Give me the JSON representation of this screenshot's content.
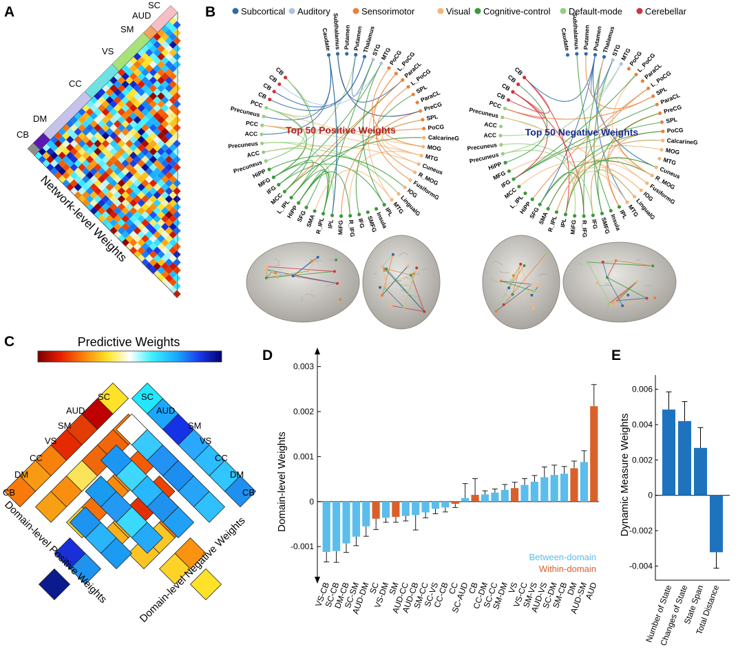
{
  "panels": {
    "a": "A",
    "b": "B",
    "c": "C",
    "d": "D",
    "e": "E"
  },
  "colors": {
    "subcortical": "#2e6aa8",
    "auditory": "#a9c3e6",
    "sensorimotor": "#e9823a",
    "visual": "#f3b57a",
    "cognitive": "#3b9a3b",
    "default": "#93cf7e",
    "cerebellar": "#d0343b",
    "between": "#5bbdeb",
    "within": "#d9602a",
    "dynamic": "#1e73be"
  },
  "legend": [
    {
      "key": "subcortical",
      "label": "Subcortical"
    },
    {
      "key": "auditory",
      "label": "Auditory"
    },
    {
      "key": "sensorimotor",
      "label": "Sensorimotor"
    },
    {
      "key": "visual",
      "label": "Visual"
    },
    {
      "key": "cognitive",
      "label": "Cognitive-control"
    },
    {
      "key": "default",
      "label": "Default-mode"
    },
    {
      "key": "cerebellar",
      "label": "Cerebellar"
    }
  ],
  "panel_a": {
    "networks": [
      "CB",
      "DM",
      "CC",
      "VS",
      "SM",
      "AUD",
      "SC"
    ],
    "caption": "Network-level Weights"
  },
  "panel_b": {
    "positive_title": "Top 50 Positive Weights",
    "negative_title": "Top 50 Negative Weights",
    "positive_nodes": [
      {
        "label": "Caudate",
        "net": "subcortical"
      },
      {
        "label": "Subthalamus",
        "net": "subcortical"
      },
      {
        "label": "Putamen",
        "net": "subcortical"
      },
      {
        "label": "Putamen",
        "net": "subcortical"
      },
      {
        "label": "Thalamus",
        "net": "subcortical"
      },
      {
        "label": "STG",
        "net": "auditory"
      },
      {
        "label": "MTG",
        "net": "auditory"
      },
      {
        "label": "PoCG",
        "net": "sensorimotor"
      },
      {
        "label": "L_PoCG",
        "net": "sensorimotor"
      },
      {
        "label": "ParaCL",
        "net": "sensorimotor"
      },
      {
        "label": "L_PoCG",
        "net": "sensorimotor"
      },
      {
        "label": "SPL",
        "net": "sensorimotor"
      },
      {
        "label": "ParaCL",
        "net": "sensorimotor"
      },
      {
        "label": "PreCG",
        "net": "sensorimotor"
      },
      {
        "label": "SPL",
        "net": "sensorimotor"
      },
      {
        "label": "PoCG",
        "net": "sensorimotor"
      },
      {
        "label": "CalcarineG",
        "net": "visual"
      },
      {
        "label": "MOG",
        "net": "visual"
      },
      {
        "label": "MTG",
        "net": "visual"
      },
      {
        "label": "Cuneus",
        "net": "visual"
      },
      {
        "label": "R_MOG",
        "net": "visual"
      },
      {
        "label": "FusiformG",
        "net": "visual"
      },
      {
        "label": "IOG",
        "net": "visual"
      },
      {
        "label": "LingualG",
        "net": "visual"
      },
      {
        "label": "MTG",
        "net": "visual"
      },
      {
        "label": "IPL",
        "net": "cognitive"
      },
      {
        "label": "Insula",
        "net": "cognitive"
      },
      {
        "label": "SMFG",
        "net": "cognitive"
      },
      {
        "label": "IFG",
        "net": "cognitive"
      },
      {
        "label": "R_IFG",
        "net": "cognitive"
      },
      {
        "label": "MiFG",
        "net": "cognitive"
      },
      {
        "label": "IPL",
        "net": "cognitive"
      },
      {
        "label": "R_IPL",
        "net": "cognitive"
      },
      {
        "label": "SMA",
        "net": "cognitive"
      },
      {
        "label": "SFG",
        "net": "cognitive"
      },
      {
        "label": "HiPP",
        "net": "cognitive"
      },
      {
        "label": "L_IPL",
        "net": "cognitive"
      },
      {
        "label": "MCC",
        "net": "cognitive"
      },
      {
        "label": "IFG",
        "net": "cognitive"
      },
      {
        "label": "MFG",
        "net": "cognitive"
      },
      {
        "label": "HiPP",
        "net": "cognitive"
      },
      {
        "label": "Precuneus",
        "net": "default"
      },
      {
        "label": "ACC",
        "net": "default"
      },
      {
        "label": "Precuneus",
        "net": "default"
      },
      {
        "label": "ACC",
        "net": "default"
      },
      {
        "label": "PCC",
        "net": "default"
      },
      {
        "label": "Precuneus",
        "net": "default"
      },
      {
        "label": "PCC",
        "net": "default"
      },
      {
        "label": "CB",
        "net": "cerebellar"
      },
      {
        "label": "CB",
        "net": "cerebellar"
      },
      {
        "label": "CB",
        "net": "cerebellar"
      },
      {
        "label": "CB",
        "net": "cerebellar"
      }
    ],
    "negative_nodes": [
      {
        "label": "Caudate",
        "net": "subcortical"
      },
      {
        "label": "Subthalamus",
        "net": "subcortical"
      },
      {
        "label": "Putamen",
        "net": "subcortical"
      },
      {
        "label": "Putamen",
        "net": "subcortical"
      },
      {
        "label": "Thalamus",
        "net": "subcortical"
      },
      {
        "label": "STG",
        "net": "auditory"
      },
      {
        "label": "MTG",
        "net": "auditory"
      },
      {
        "label": "PoCG",
        "net": "sensorimotor"
      },
      {
        "label": "L_PoCG",
        "net": "sensorimotor"
      },
      {
        "label": "ParaCL",
        "net": "sensorimotor"
      },
      {
        "label": "L_PoCG",
        "net": "sensorimotor"
      },
      {
        "label": "SPL",
        "net": "sensorimotor"
      },
      {
        "label": "ParaCL",
        "net": "sensorimotor"
      },
      {
        "label": "PreCG",
        "net": "sensorimotor"
      },
      {
        "label": "SPL",
        "net": "sensorimotor"
      },
      {
        "label": "PoCG",
        "net": "sensorimotor"
      },
      {
        "label": "CalcarineG",
        "net": "visual"
      },
      {
        "label": "MOG",
        "net": "visual"
      },
      {
        "label": "MTG",
        "net": "visual"
      },
      {
        "label": "Cuneus",
        "net": "visual"
      },
      {
        "label": "R_MOG",
        "net": "visual"
      },
      {
        "label": "FusiformG",
        "net": "visual"
      },
      {
        "label": "IOG",
        "net": "visual"
      },
      {
        "label": "LingualG",
        "net": "visual"
      },
      {
        "label": "MTG",
        "net": "visual"
      },
      {
        "label": "IPL",
        "net": "cognitive"
      },
      {
        "label": "Insula",
        "net": "cognitive"
      },
      {
        "label": "SMFG",
        "net": "cognitive"
      },
      {
        "label": "IFG",
        "net": "cognitive"
      },
      {
        "label": "R_IFG",
        "net": "cognitive"
      },
      {
        "label": "MiFG",
        "net": "cognitive"
      },
      {
        "label": "IPL",
        "net": "cognitive"
      },
      {
        "label": "R_IPL",
        "net": "cognitive"
      },
      {
        "label": "SMA",
        "net": "cognitive"
      },
      {
        "label": "SFG",
        "net": "cognitive"
      },
      {
        "label": "HiPP",
        "net": "cognitive"
      },
      {
        "label": "L_IPL",
        "net": "cognitive"
      },
      {
        "label": "MCC",
        "net": "cognitive"
      },
      {
        "label": "IFG",
        "net": "cognitive"
      },
      {
        "label": "MFG",
        "net": "cognitive"
      },
      {
        "label": "HiPP",
        "net": "cognitive"
      },
      {
        "label": "Precuneus",
        "net": "default"
      },
      {
        "label": "Precuneus",
        "net": "default"
      },
      {
        "label": "ACC",
        "net": "default"
      },
      {
        "label": "ACC",
        "net": "default"
      },
      {
        "label": "Precuneus",
        "net": "default"
      },
      {
        "label": "PCC",
        "net": "default"
      },
      {
        "label": "CB",
        "net": "cerebellar"
      },
      {
        "label": "CB",
        "net": "cerebellar"
      },
      {
        "label": "CB",
        "net": "cerebellar"
      },
      {
        "label": "CB",
        "net": "cerebellar"
      }
    ]
  },
  "panel_c": {
    "colorbar_title": "Predictive Weights",
    "networks": [
      "SC",
      "AUD",
      "SM",
      "VS",
      "CC",
      "DM",
      "CB"
    ],
    "positive_caption": "Domain-level Positive Weights",
    "negative_caption": "Domain-level Negative Weights"
  },
  "chart_data": [
    {
      "type": "bar",
      "title": "",
      "ylabel": "Domain-level Weights",
      "xlabel": "",
      "ylim": [
        -0.0017,
        0.0033
      ],
      "yticks": [
        -0.001,
        0,
        0.001,
        0.002,
        0.003
      ],
      "ytick_labels": [
        "-0.001",
        "0",
        "0.001",
        "0.002",
        "0.003"
      ],
      "legend": [
        {
          "key": "between",
          "label": "Between-domain"
        },
        {
          "key": "within",
          "label": "Within-domain"
        }
      ],
      "categories": [
        "VS-CB",
        "SC-CB",
        "DM-CB",
        "SC-SM",
        "AUD-DM",
        "SC",
        "VS-DM",
        "SM",
        "AUD-CC",
        "AUD-CB",
        "SM-CC",
        "SC-VS",
        "CC-CB",
        "CC",
        "SC-AUD",
        "CB",
        "CC-DM",
        "SC-CC",
        "SM-DM",
        "VS",
        "VS-CC",
        "SM-VS",
        "AUD-VS",
        "SC-DM",
        "SM-CB",
        "DM",
        "AUD-SM",
        "AUD"
      ],
      "values": [
        -0.00112,
        -0.0011,
        -0.00093,
        -0.00078,
        -0.00055,
        -0.00038,
        -0.00036,
        -0.00034,
        -0.00032,
        -0.0003,
        -0.00024,
        -0.00016,
        -0.00013,
        -5e-05,
        8e-05,
        0.00015,
        0.00016,
        0.0002,
        0.00026,
        0.0003,
        0.00037,
        0.00044,
        0.00054,
        0.00059,
        0.00062,
        0.00074,
        0.00088,
        0.00212
      ],
      "errors": [
        0.00022,
        0.00025,
        0.0002,
        0.0002,
        0.00022,
        0.00024,
        0.0001,
        0.00012,
        0.00011,
        0.00033,
        0.00012,
        0.00011,
        0.0001,
        8e-05,
        0.00032,
        0.00036,
        8e-05,
        8e-05,
        0.00012,
        0.00013,
        0.00014,
        0.00014,
        0.00023,
        0.00022,
        0.00016,
        0.00016,
        0.00025,
        0.00048
      ],
      "kind": [
        "between",
        "between",
        "between",
        "between",
        "between",
        "within",
        "between",
        "within",
        "between",
        "between",
        "between",
        "between",
        "between",
        "within",
        "between",
        "within",
        "between",
        "between",
        "between",
        "within",
        "between",
        "between",
        "between",
        "between",
        "between",
        "within",
        "between",
        "within"
      ]
    },
    {
      "type": "bar",
      "title": "",
      "ylabel": "Dynamic Measure Weights",
      "xlabel": "",
      "ylim": [
        -0.0048,
        0.0068
      ],
      "yticks": [
        -0.004,
        -0.002,
        0,
        0.002,
        0.004,
        0.006
      ],
      "ytick_labels": [
        "-0.004",
        "-0.002",
        "0",
        "0.002",
        "0.004",
        "0.006"
      ],
      "categories": [
        "Number of State",
        "Changes of State",
        "State Span",
        "Total Distance"
      ],
      "values": [
        0.00485,
        0.0042,
        0.00268,
        -0.00322
      ],
      "errors": [
        0.001,
        0.0011,
        0.00115,
        0.0009
      ]
    }
  ]
}
